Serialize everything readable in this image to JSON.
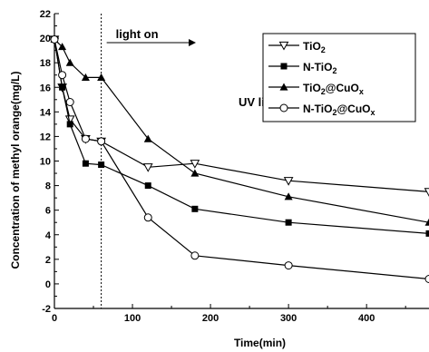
{
  "chart_data": {
    "type": "line",
    "title": "",
    "xlabel": "Time(min)",
    "ylabel": "Concentration of methyl orange(mg/L)",
    "xlim": [
      0,
      480
    ],
    "ylim": [
      -2,
      22
    ],
    "x_ticks": [
      0,
      100,
      200,
      300,
      400
    ],
    "y_ticks": [
      -2,
      0,
      2,
      4,
      6,
      8,
      10,
      12,
      14,
      16,
      18,
      20,
      22
    ],
    "grid": false,
    "legend_position": "top-right",
    "annotations": {
      "light_on": "light on",
      "light_on_x": 60,
      "uv_light": "UV light"
    },
    "series": [
      {
        "name": "TiO2",
        "label_base": "TiO",
        "label_parts": [
          {
            "sub": "2"
          }
        ],
        "marker": "triangle-down-open",
        "x": [
          0,
          10,
          20,
          40,
          60,
          120,
          180,
          300,
          480
        ],
        "y": [
          19.9,
          16.0,
          13.4,
          11.8,
          11.6,
          9.5,
          9.8,
          8.4,
          7.5
        ]
      },
      {
        "name": "N-TiO2",
        "label_base": "N-TiO",
        "label_parts": [
          {
            "sub": "2"
          }
        ],
        "marker": "square-filled",
        "x": [
          0,
          10,
          20,
          40,
          60,
          120,
          180,
          300,
          480
        ],
        "y": [
          19.9,
          16.0,
          13.0,
          9.8,
          9.7,
          8.0,
          6.1,
          5.0,
          4.1
        ]
      },
      {
        "name": "TiO2@CuOx",
        "label_base": "TiO",
        "label_parts": [
          {
            "sub": "2"
          },
          {
            "text": "@CuO"
          },
          {
            "sub": "x"
          }
        ],
        "marker": "triangle-up-filled",
        "x": [
          0,
          10,
          20,
          40,
          60,
          120,
          180,
          300,
          480
        ],
        "y": [
          19.9,
          19.3,
          18.0,
          16.8,
          16.8,
          11.8,
          9.0,
          7.1,
          5.0
        ]
      },
      {
        "name": "N-TiO2@CuOx",
        "label_base": "N-TiO",
        "label_parts": [
          {
            "sub": "2"
          },
          {
            "text": "@CuO"
          },
          {
            "sub": "x"
          }
        ],
        "marker": "circle-open",
        "x": [
          0,
          10,
          20,
          40,
          60,
          120,
          180,
          300,
          480
        ],
        "y": [
          19.9,
          17.0,
          14.8,
          11.8,
          11.6,
          5.4,
          2.3,
          1.5,
          0.4
        ]
      }
    ]
  }
}
